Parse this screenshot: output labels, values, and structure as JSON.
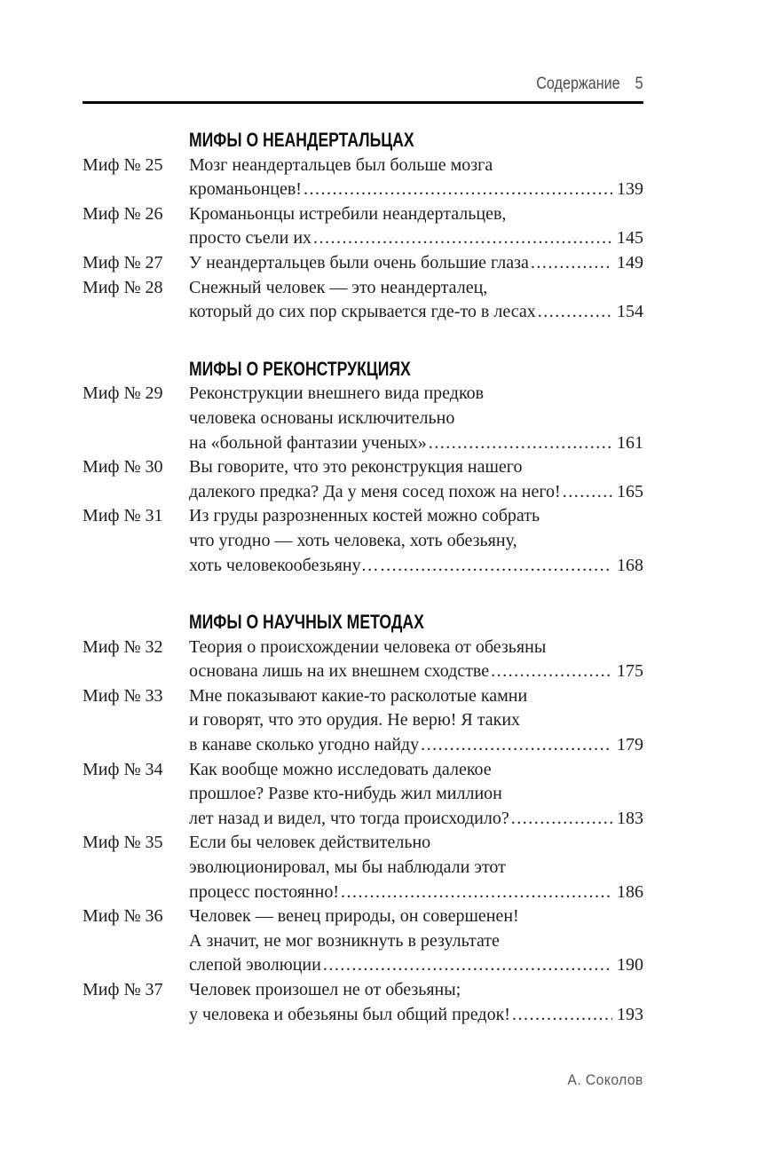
{
  "header": {
    "title": "Содержание",
    "page_number": "5"
  },
  "footer": {
    "author": "А. Соколов"
  },
  "colors": {
    "text": "#1c1c1c",
    "muted_header": "#4b4b4b",
    "muted_footer": "#595959",
    "rule": "#000000",
    "background": "#ffffff"
  },
  "sections": [
    {
      "title": "МИФЫ О НЕАНДЕРТАЛЬЦАХ",
      "entries": [
        {
          "label": "Миф № 25",
          "lines": [
            "Мозг неандертальцев был больше мозга",
            "кроманьонцев!"
          ],
          "page": "139"
        },
        {
          "label": "Миф № 26",
          "lines": [
            "Кроманьонцы истребили неандертальцев,",
            "просто съели их"
          ],
          "page": "145"
        },
        {
          "label": "Миф № 27",
          "lines": [
            "У неандертальцев были очень большие глаза"
          ],
          "page": "149"
        },
        {
          "label": "Миф № 28",
          "lines": [
            "Снежный человек — это неандерталец,",
            "который до сих пор скрывается где-то в лесах"
          ],
          "page": "154"
        }
      ]
    },
    {
      "title": "МИФЫ О РЕКОНСТРУКЦИЯХ",
      "entries": [
        {
          "label": "Миф № 29",
          "lines": [
            "Реконструкции внешнего вида предков",
            "человека основаны исключительно",
            "на «больной фантазии ученых»"
          ],
          "page": "161"
        },
        {
          "label": "Миф № 30",
          "lines": [
            "Вы говорите, что это реконструкция нашего",
            "далекого предка? Да у меня сосед похож на него!"
          ],
          "page": "165"
        },
        {
          "label": "Миф № 31",
          "lines": [
            "Из груды разрозненных костей можно собрать",
            "что угодно — хоть человека, хоть обезьяну,",
            "хоть человекообезьяну…"
          ],
          "page": "168"
        }
      ]
    },
    {
      "title": "МИФЫ О НАУЧНЫХ МЕТОДАХ",
      "entries": [
        {
          "label": "Миф № 32",
          "lines": [
            "Теория о происхождении человека от обезьяны",
            "основана лишь на их внешнем сходстве"
          ],
          "page": "175"
        },
        {
          "label": "Миф № 33",
          "lines": [
            "Мне показывают какие-то расколотые камни",
            "и говорят, что это орудия. Не верю! Я таких",
            "в канаве сколько угодно найду"
          ],
          "page": "179"
        },
        {
          "label": "Миф № 34",
          "lines": [
            "Как вообще можно исследовать далекое",
            "прошлое? Разве кто-нибудь жил миллион",
            "лет назад и видел, что тогда происходило?"
          ],
          "page": "183"
        },
        {
          "label": "Миф № 35",
          "lines": [
            "Если бы человек действительно",
            "эволюционировал, мы бы наблюдали этот",
            "процесс постоянно!"
          ],
          "page": "186"
        },
        {
          "label": "Миф № 36",
          "lines": [
            "Человек — венец природы, он совершенен!",
            "А значит, не мог возникнуть в результате",
            "слепой эволюции"
          ],
          "page": "190"
        },
        {
          "label": "Миф № 37",
          "lines": [
            "Человек произошел не от обезьяны;",
            "у человека и обезьяны был общий предок!"
          ],
          "page": "193"
        }
      ]
    }
  ]
}
